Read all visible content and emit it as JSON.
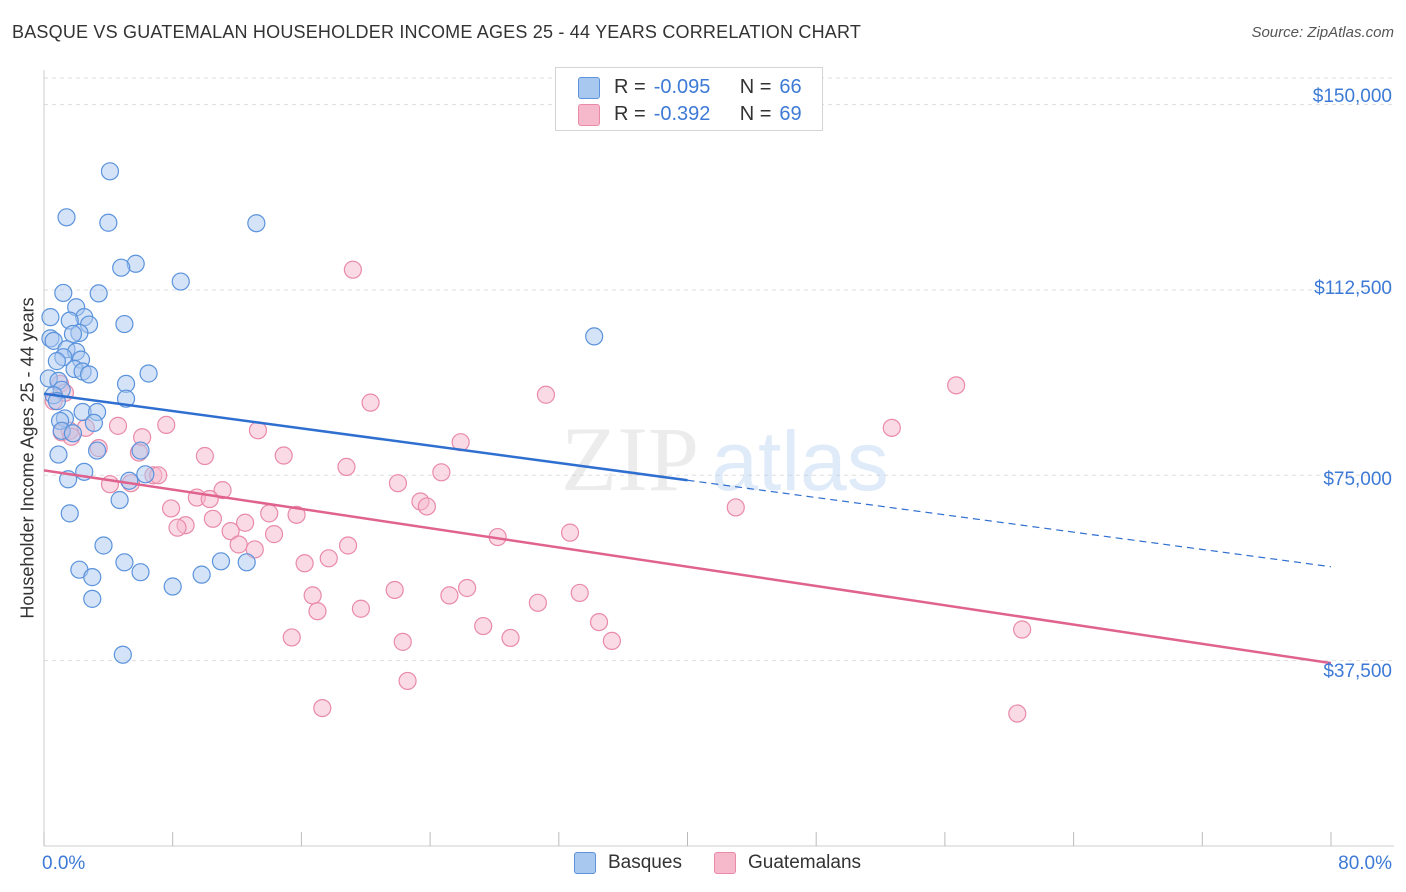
{
  "title": "BASQUE VS GUATEMALAN HOUSEHOLDER INCOME AGES 25 - 44 YEARS CORRELATION CHART",
  "source": "Source: ZipAtlas.com",
  "watermark": {
    "zip": "ZIP",
    "atlas": "atlas"
  },
  "legend": {
    "basque": {
      "r_label": "R =",
      "r_value": "-0.095",
      "n_label": "N =",
      "n_value": "66"
    },
    "guatemalan": {
      "r_label": "R =",
      "r_value": "-0.392",
      "n_label": "N =",
      "n_value": "69"
    }
  },
  "bottom_legend": {
    "basques": "Basques",
    "guatemalans": "Guatemalans"
  },
  "colors": {
    "basque_fill": "#a9c8f0",
    "basque_stroke": "#5b93dc",
    "basque_line": "#2f6fd0",
    "guatemalan_fill": "#f6b8cb",
    "guatemalan_stroke": "#e98aa8",
    "guatemalan_line": "#e0628e",
    "axis_text": "#3d7ad6"
  },
  "chart_data": {
    "type": "scatter",
    "title": "BASQUE VS GUATEMALAN HOUSEHOLDER INCOME AGES 25 - 44 YEARS CORRELATION CHART",
    "xlabel": "",
    "ylabel": "Householder Income Ages 25 - 44 years",
    "xlim": [
      0,
      80
    ],
    "ylim": [
      0,
      157000
    ],
    "x_tick_labels": [
      "0.0%",
      "80.0%"
    ],
    "y_ticks": [
      37500,
      75000,
      112500,
      150000
    ],
    "y_tick_labels": [
      "$37,500",
      "$75,000",
      "$112,500",
      "$150,000"
    ],
    "grid": true,
    "legend_position": "top-center",
    "series": [
      {
        "name": "Basques",
        "trend": {
          "x0": 0,
          "y0": 91500,
          "x1": 40,
          "y1": 74000,
          "dashed_to_x": 80,
          "dashed_to_y": 56500
        },
        "points": [
          [
            4.1,
            136500
          ],
          [
            1.4,
            127200
          ],
          [
            4.0,
            126100
          ],
          [
            13.2,
            126000
          ],
          [
            5.7,
            117800
          ],
          [
            4.8,
            117000
          ],
          [
            8.5,
            114200
          ],
          [
            1.2,
            111900
          ],
          [
            3.4,
            111800
          ],
          [
            2.0,
            109000
          ],
          [
            0.4,
            107000
          ],
          [
            2.5,
            107000
          ],
          [
            1.6,
            106300
          ],
          [
            5.0,
            105600
          ],
          [
            2.8,
            105500
          ],
          [
            2.2,
            103800
          ],
          [
            1.8,
            103600
          ],
          [
            34.2,
            103100
          ],
          [
            0.4,
            102700
          ],
          [
            0.6,
            102200
          ],
          [
            1.4,
            100500
          ],
          [
            2.0,
            100000
          ],
          [
            1.2,
            98900
          ],
          [
            2.3,
            98400
          ],
          [
            0.8,
            98100
          ],
          [
            1.9,
            96500
          ],
          [
            2.4,
            96000
          ],
          [
            6.5,
            95600
          ],
          [
            2.8,
            95400
          ],
          [
            0.3,
            94600
          ],
          [
            0.9,
            94100
          ],
          [
            5.1,
            93500
          ],
          [
            1.1,
            92300
          ],
          [
            0.6,
            91200
          ],
          [
            5.1,
            90500
          ],
          [
            0.8,
            90000
          ],
          [
            2.4,
            87800
          ],
          [
            3.3,
            87800
          ],
          [
            1.3,
            86500
          ],
          [
            1.0,
            86000
          ],
          [
            3.1,
            85600
          ],
          [
            1.1,
            84000
          ],
          [
            1.8,
            83500
          ],
          [
            3.3,
            80000
          ],
          [
            6.0,
            80000
          ],
          [
            0.9,
            79200
          ],
          [
            2.5,
            75700
          ],
          [
            6.3,
            75200
          ],
          [
            1.5,
            74200
          ],
          [
            5.3,
            73900
          ],
          [
            4.7,
            70000
          ],
          [
            1.6,
            67300
          ],
          [
            3.7,
            60800
          ],
          [
            5.0,
            57400
          ],
          [
            11.0,
            57600
          ],
          [
            12.6,
            57400
          ],
          [
            2.2,
            55900
          ],
          [
            6.0,
            55400
          ],
          [
            9.8,
            54900
          ],
          [
            3.0,
            54400
          ],
          [
            8.0,
            52500
          ],
          [
            3.0,
            50000
          ],
          [
            4.9,
            38700
          ]
        ]
      },
      {
        "name": "Guatemalans",
        "trend": {
          "x0": 0,
          "y0": 76000,
          "x1": 80,
          "y1": 37000
        },
        "points": [
          [
            19.2,
            116600
          ],
          [
            56.7,
            93200
          ],
          [
            31.2,
            91300
          ],
          [
            20.3,
            89700
          ],
          [
            1.0,
            93500
          ],
          [
            0.6,
            90000
          ],
          [
            1.3,
            91700
          ],
          [
            52.7,
            84600
          ],
          [
            7.6,
            85200
          ],
          [
            4.6,
            85000
          ],
          [
            2.6,
            84600
          ],
          [
            13.3,
            84100
          ],
          [
            1.6,
            84000
          ],
          [
            1.1,
            83700
          ],
          [
            1.7,
            82800
          ],
          [
            6.1,
            82700
          ],
          [
            25.9,
            81700
          ],
          [
            3.4,
            80500
          ],
          [
            5.9,
            79600
          ],
          [
            14.9,
            79000
          ],
          [
            10.0,
            78900
          ],
          [
            18.8,
            76700
          ],
          [
            24.7,
            75600
          ],
          [
            6.8,
            75000
          ],
          [
            7.1,
            75000
          ],
          [
            22.0,
            73400
          ],
          [
            5.4,
            73400
          ],
          [
            4.1,
            73200
          ],
          [
            11.1,
            72000
          ],
          [
            9.5,
            70500
          ],
          [
            10.3,
            70200
          ],
          [
            23.4,
            69700
          ],
          [
            23.8,
            68700
          ],
          [
            43.0,
            68500
          ],
          [
            7.9,
            68300
          ],
          [
            14.0,
            67300
          ],
          [
            15.7,
            67000
          ],
          [
            10.5,
            66200
          ],
          [
            12.5,
            65400
          ],
          [
            8.8,
            64900
          ],
          [
            8.3,
            64400
          ],
          [
            11.6,
            63700
          ],
          [
            32.7,
            63400
          ],
          [
            14.3,
            63100
          ],
          [
            28.2,
            62500
          ],
          [
            12.1,
            61000
          ],
          [
            18.9,
            60800
          ],
          [
            13.1,
            60000
          ],
          [
            17.7,
            58200
          ],
          [
            16.2,
            57200
          ],
          [
            26.3,
            52200
          ],
          [
            21.8,
            51800
          ],
          [
            33.3,
            51200
          ],
          [
            16.7,
            50700
          ],
          [
            25.2,
            50700
          ],
          [
            30.7,
            49200
          ],
          [
            19.7,
            48000
          ],
          [
            17.0,
            47500
          ],
          [
            34.5,
            45300
          ],
          [
            27.3,
            44500
          ],
          [
            60.8,
            43800
          ],
          [
            15.4,
            42200
          ],
          [
            29.0,
            42100
          ],
          [
            35.3,
            41500
          ],
          [
            22.3,
            41300
          ],
          [
            22.6,
            33400
          ],
          [
            17.3,
            27900
          ],
          [
            60.5,
            26800
          ]
        ]
      }
    ]
  }
}
